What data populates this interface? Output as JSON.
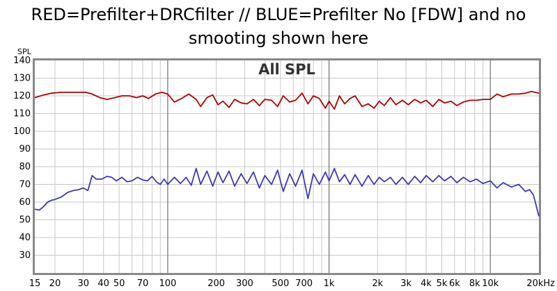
{
  "header": {
    "title_line1": "RED=Prefilter+DRCfilter // BLUE=Prefilter No [FDW] and no",
    "title_line2": "smooting shown here"
  },
  "chart_data": {
    "type": "line",
    "title": "All SPL",
    "ylabel": "SPL",
    "xlabel": "",
    "x_scale": "log",
    "xlim": [
      15,
      20000
    ],
    "ylim": [
      20,
      140
    ],
    "y_ticks": [
      30,
      40,
      50,
      60,
      70,
      80,
      90,
      100,
      110,
      120,
      130,
      140
    ],
    "x_tick_values": [
      15,
      20,
      30,
      40,
      50,
      70,
      100,
      200,
      300,
      500,
      700,
      1000,
      2000,
      3000,
      4000,
      5000,
      6000,
      8000,
      10000,
      20000
    ],
    "x_tick_labels": [
      "15",
      "20",
      "30",
      "40",
      "50",
      "70",
      "100",
      "200",
      "300",
      "500",
      "700",
      "1k",
      "2k",
      "3k",
      "4k",
      "5k",
      "6k",
      "8k",
      "10k",
      "20kHz"
    ],
    "grid": true,
    "series": [
      {
        "color": "#b00000",
        "x": [
          15,
          17,
          19,
          22,
          25,
          28,
          31,
          34,
          38,
          42,
          47,
          52,
          58,
          64,
          70,
          76,
          84,
          92,
          100,
          110,
          122,
          135,
          150,
          160,
          175,
          190,
          205,
          220,
          240,
          260,
          285,
          310,
          340,
          370,
          400,
          440,
          480,
          520,
          570,
          620,
          680,
          740,
          800,
          870,
          950,
          1000,
          1080,
          1160,
          1250,
          1350,
          1450,
          1600,
          1750,
          1900,
          2050,
          2200,
          2400,
          2600,
          2850,
          3100,
          3400,
          3700,
          4000,
          4400,
          4800,
          5200,
          5700,
          6200,
          6800,
          7500,
          8200,
          9000,
          10000,
          11000,
          12000,
          13500,
          15000,
          16500,
          18000,
          20000
        ],
        "y": [
          119,
          120.5,
          121.5,
          122,
          122,
          122,
          122,
          121,
          119,
          118,
          119,
          120,
          120,
          119,
          120,
          118.5,
          121,
          122,
          121,
          116.5,
          118.5,
          121,
          118,
          114,
          119,
          120.5,
          115,
          117,
          113.5,
          118,
          116,
          115.5,
          118,
          114.5,
          118,
          117.5,
          114,
          120,
          116.5,
          117.5,
          121.5,
          115.5,
          120,
          118.5,
          113,
          117,
          112.5,
          120,
          115.5,
          118.5,
          120,
          114,
          115.5,
          113,
          117,
          114.5,
          119,
          115,
          117.5,
          115,
          118,
          116,
          117.5,
          114,
          118,
          116,
          117,
          114.5,
          116.5,
          117.5,
          117.5,
          118,
          118,
          121,
          119.5,
          121,
          121,
          121.5,
          122.5,
          121.5
        ]
      },
      {
        "color": "#3a3ab8",
        "x": [
          15,
          16,
          17,
          18,
          19,
          20,
          22,
          24,
          26,
          28,
          30,
          32,
          34,
          36,
          39,
          42,
          45,
          48,
          52,
          56,
          60,
          65,
          70,
          75,
          80,
          85,
          90,
          95,
          100,
          110,
          120,
          130,
          140,
          150,
          160,
          175,
          190,
          205,
          220,
          240,
          260,
          285,
          310,
          340,
          370,
          400,
          440,
          480,
          520,
          570,
          620,
          680,
          740,
          800,
          870,
          950,
          1000,
          1080,
          1160,
          1250,
          1350,
          1450,
          1600,
          1750,
          1900,
          2050,
          2200,
          2400,
          2600,
          2850,
          3100,
          3400,
          3700,
          4000,
          4400,
          4800,
          5200,
          5700,
          6200,
          6800,
          7500,
          8200,
          9000,
          10000,
          11000,
          12000,
          13500,
          15000,
          16500,
          17500,
          18500,
          20000
        ],
        "y": [
          56,
          55.5,
          57.5,
          60,
          61,
          61.5,
          63,
          65.5,
          66.5,
          67,
          68,
          66.5,
          75,
          73,
          73,
          74.5,
          74,
          72,
          74,
          71.5,
          72,
          74,
          72.5,
          72,
          74.5,
          71.5,
          70,
          73,
          70,
          74,
          70.5,
          74,
          69.5,
          79,
          70,
          77.5,
          69,
          77,
          71,
          77.5,
          69,
          76,
          70.5,
          77,
          68,
          75,
          70,
          78,
          66,
          76,
          69,
          78,
          62,
          76,
          70,
          77,
          72,
          79,
          71.5,
          75.5,
          70,
          75.5,
          69,
          75,
          70,
          74,
          71.5,
          74,
          70,
          74,
          70,
          74.5,
          71,
          75,
          71.5,
          75,
          72,
          74.5,
          71,
          74,
          71.5,
          73,
          70.5,
          72,
          68,
          71,
          68.5,
          70,
          66,
          67,
          64,
          52
        ]
      }
    ]
  }
}
